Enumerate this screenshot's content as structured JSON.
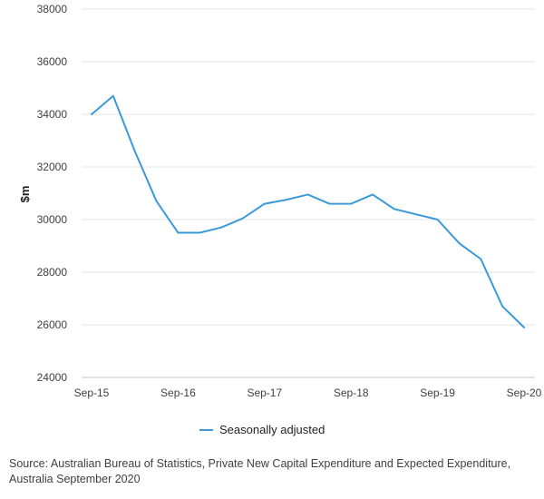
{
  "chart_data": {
    "type": "line",
    "title": "",
    "ylabel": "$m",
    "xlabel": "",
    "ylim": [
      24000,
      38000
    ],
    "yticks": [
      24000,
      26000,
      28000,
      30000,
      32000,
      34000,
      36000,
      38000
    ],
    "x": [
      "Sep-15",
      "Dec-15",
      "Mar-16",
      "Jun-16",
      "Sep-16",
      "Dec-16",
      "Mar-17",
      "Jun-17",
      "Sep-17",
      "Dec-17",
      "Mar-18",
      "Jun-18",
      "Sep-18",
      "Dec-18",
      "Mar-19",
      "Jun-19",
      "Sep-19",
      "Dec-19",
      "Mar-20",
      "Jun-20",
      "Sep-20"
    ],
    "xtick_labels": [
      "Sep-15",
      "Sep-16",
      "Sep-17",
      "Sep-18",
      "Sep-19",
      "Sep-20"
    ],
    "series": [
      {
        "name": "Seasonally adjusted",
        "color": "#3a9ad9",
        "values": [
          34000,
          34700,
          32600,
          30700,
          29500,
          29500,
          29700,
          30050,
          30600,
          30750,
          30950,
          30600,
          30600,
          30950,
          30400,
          30200,
          30000,
          29100,
          28500,
          26700,
          25900
        ]
      }
    ],
    "legend_position": "bottom-center",
    "grid": true
  },
  "source": "Source: Australian Bureau of Statistics, Private New Capital Expenditure and Expected Expenditure, Australia September 2020"
}
